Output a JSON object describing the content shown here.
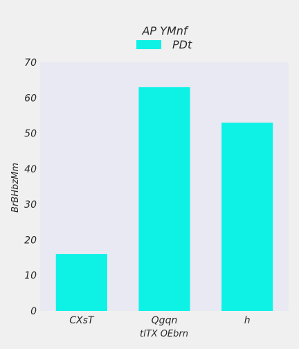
{
  "chart_data": {
    "type": "bar",
    "title": "AP YMnf",
    "xlabel": "tlTX OEbrn",
    "ylabel": "BrBHbzMm",
    "categories": [
      "CXsT",
      "Qgqn",
      "h"
    ],
    "series": [
      {
        "name": "PDt",
        "values": [
          16,
          63,
          53
        ]
      }
    ],
    "ylim": [
      0,
      70
    ],
    "yticks": [
      "0",
      "10",
      "20",
      "30",
      "40",
      "50",
      "60",
      "70"
    ],
    "legend": "top-center",
    "grid": false,
    "colors": {
      "bar": "#0ef2e6",
      "plot_bg": "#e9e9f3",
      "page_bg": "#f0f0f0"
    }
  }
}
